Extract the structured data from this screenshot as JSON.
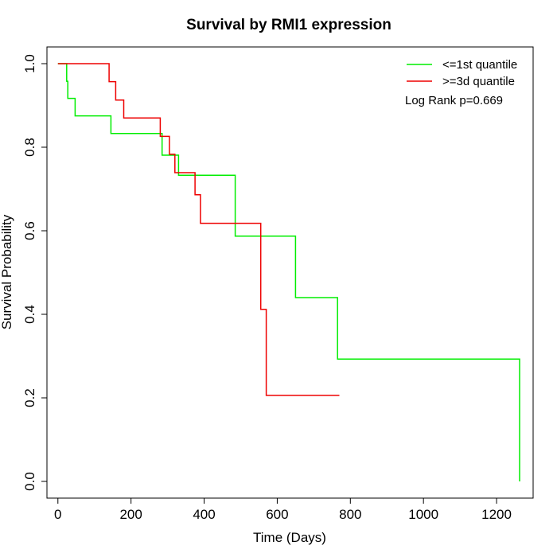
{
  "chart_data": {
    "type": "line",
    "subtype": "kaplan-meier step",
    "title": "Survival by RMI1 expression",
    "xlabel": "Time (Days)",
    "ylabel": "Survival Probability",
    "xlim": [
      -30,
      1300
    ],
    "ylim": [
      -0.04,
      1.04
    ],
    "xticks": [
      0,
      200,
      400,
      600,
      800,
      1000,
      1200
    ],
    "xtick_labels": [
      "0",
      "200",
      "400",
      "600",
      "800",
      "1000",
      "1200"
    ],
    "yticks": [
      0.0,
      0.2,
      0.4,
      0.6,
      0.8,
      1.0
    ],
    "ytick_labels": [
      "0.0",
      "0.2",
      "0.4",
      "0.6",
      "0.8",
      "1.0"
    ],
    "grid": false,
    "legend_position": "top-right",
    "series": [
      {
        "name": "<=1st quantile",
        "color": "#00ee00",
        "x": [
          0,
          24,
          24,
          27,
          27,
          47,
          47,
          145,
          145,
          285,
          285,
          330,
          330,
          485,
          485,
          650,
          650,
          765,
          765,
          1263,
          1263
        ],
        "y": [
          1.0,
          1.0,
          0.958,
          0.958,
          0.917,
          0.917,
          0.875,
          0.875,
          0.833,
          0.833,
          0.781,
          0.781,
          0.733,
          0.733,
          0.587,
          0.587,
          0.44,
          0.44,
          0.293,
          0.293,
          0.0
        ]
      },
      {
        "name": ">=3d quantile",
        "color": "#ee0000",
        "x": [
          0,
          140,
          140,
          158,
          158,
          180,
          180,
          280,
          280,
          305,
          305,
          320,
          320,
          375,
          375,
          390,
          390,
          555,
          555,
          570,
          570,
          770
        ],
        "y": [
          1.0,
          1.0,
          0.957,
          0.957,
          0.913,
          0.913,
          0.87,
          0.87,
          0.826,
          0.826,
          0.783,
          0.783,
          0.739,
          0.739,
          0.686,
          0.686,
          0.618,
          0.618,
          0.412,
          0.412,
          0.206,
          0.206
        ]
      }
    ],
    "annotations": [
      "Log Rank p=0.669"
    ]
  }
}
